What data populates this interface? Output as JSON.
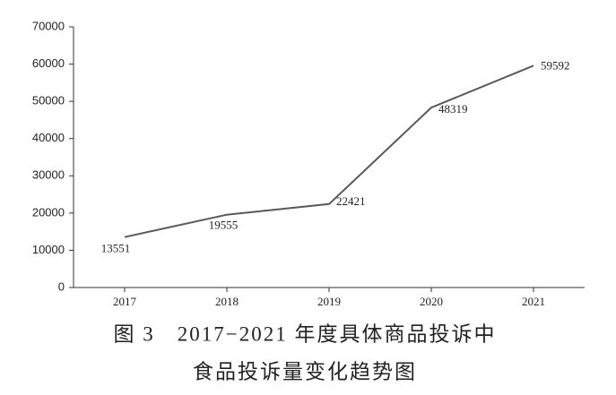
{
  "chart_data": {
    "type": "line",
    "title": [
      "图 3　2017−2021 年度具体商品投诉中",
      "食品投诉量变化趋势图"
    ],
    "categories": [
      "2017",
      "2018",
      "2019",
      "2020",
      "2021"
    ],
    "values": [
      13551,
      19555,
      22421,
      48319,
      59592
    ],
    "color": "#595959",
    "ylim": [
      0,
      70000
    ],
    "yticks": [
      0,
      10000,
      20000,
      30000,
      40000,
      50000,
      60000,
      70000
    ]
  }
}
